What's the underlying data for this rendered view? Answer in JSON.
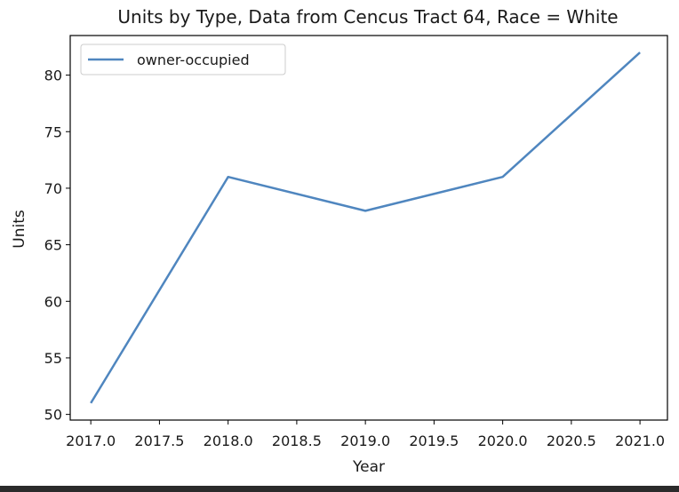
{
  "chart_data": {
    "type": "line",
    "title": "Units by Type, Data from Cencus Tract 64, Race = White",
    "xlabel": "Year",
    "ylabel": "Units",
    "x": [
      2017,
      2018,
      2019,
      2020,
      2021
    ],
    "series": [
      {
        "name": "owner-occupied",
        "values": [
          51,
          71,
          68,
          71,
          82
        ],
        "color": "#4f86bf"
      }
    ],
    "xlim": [
      2016.85,
      2021.2
    ],
    "ylim": [
      49.5,
      83.5
    ],
    "xticks": [
      "2017.0",
      "2017.5",
      "2018.0",
      "2018.5",
      "2019.0",
      "2019.5",
      "2020.0",
      "2020.5",
      "2021.0"
    ],
    "xtick_values": [
      2017.0,
      2017.5,
      2018.0,
      2018.5,
      2019.0,
      2019.5,
      2020.0,
      2020.5,
      2021.0
    ],
    "yticks": [
      "50",
      "55",
      "60",
      "65",
      "70",
      "75",
      "80"
    ],
    "ytick_values": [
      50,
      55,
      60,
      65,
      70,
      75,
      80
    ],
    "grid": false,
    "legend_position": "upper-left"
  }
}
